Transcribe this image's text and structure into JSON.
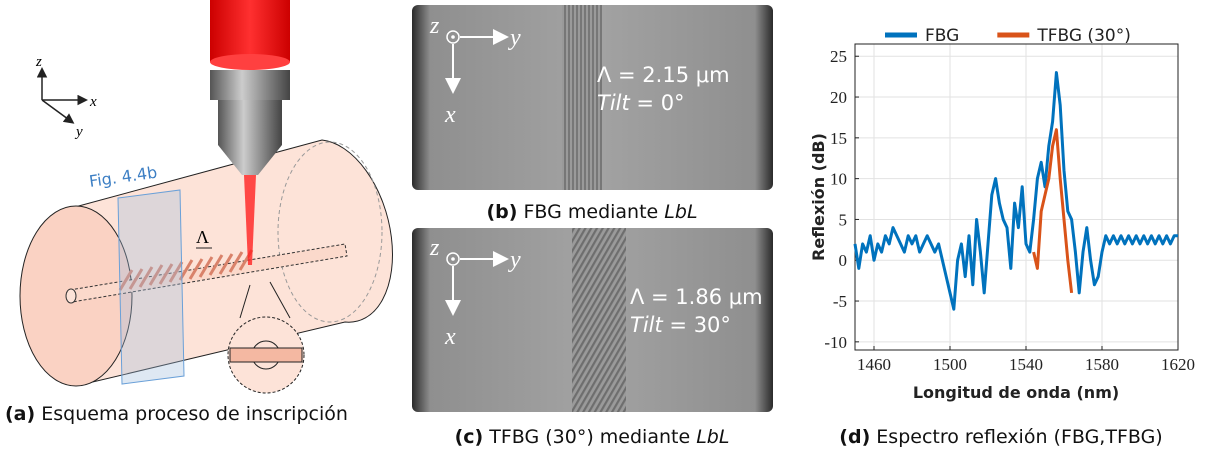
{
  "panel_a": {
    "label": "(a)",
    "caption": "Esquema proceso de inscripción",
    "axis_z": "z",
    "axis_x": "x",
    "axis_y": "y",
    "fig_ref": "Fig. 4.4b",
    "period_symbol": "Λ"
  },
  "panel_b": {
    "label": "(b)",
    "caption": "FBG mediante",
    "caption_italic": "LbL",
    "axis_z": "z",
    "axis_y": "y",
    "axis_x": "x",
    "period": "Λ = 2.15 μm",
    "tilt_word": "Tilt",
    "tilt_value": "= 0°"
  },
  "panel_c": {
    "label": "(c)",
    "caption": "TFBG (30°) mediante",
    "caption_italic": "LbL",
    "axis_z": "z",
    "axis_y": "y",
    "axis_x": "x",
    "period": "Λ = 1.86 μm",
    "tilt_word": "Tilt",
    "tilt_value": "= 30°"
  },
  "chart_data": {
    "type": "line",
    "label": "(d)",
    "caption": "Espectro reflexión (FBG,TFBG)",
    "x_label": "Longitud de onda (nm)",
    "y_label": "Reflexión (dB)",
    "xlim": [
      1450,
      1620
    ],
    "ylim": [
      -11,
      26.5
    ],
    "xticks": [
      1460,
      1500,
      1540,
      1580,
      1620
    ],
    "yticks": [
      -10,
      -5,
      0,
      5,
      10,
      15,
      20,
      25
    ],
    "grid": true,
    "legend": "top",
    "x": [
      1450,
      1452,
      1454,
      1456,
      1458,
      1460,
      1462,
      1464,
      1466,
      1468,
      1470,
      1472,
      1474,
      1476,
      1478,
      1480,
      1482,
      1484,
      1486,
      1488,
      1490,
      1492,
      1494,
      1496,
      1498,
      1500,
      1502,
      1504,
      1506,
      1508,
      1510,
      1512,
      1514,
      1516,
      1518,
      1520,
      1522,
      1524,
      1526,
      1528,
      1530,
      1532,
      1534,
      1536,
      1538,
      1540,
      1542,
      1544,
      1546,
      1548,
      1550,
      1552,
      1554,
      1556,
      1558,
      1560,
      1562,
      1564,
      1566,
      1568,
      1570,
      1572,
      1574,
      1576,
      1578,
      1580,
      1582,
      1584,
      1586,
      1588,
      1590,
      1592,
      1594,
      1596,
      1598,
      1600,
      1602,
      1604,
      1606,
      1608,
      1610,
      1612,
      1614,
      1616,
      1618,
      1620
    ],
    "series": [
      {
        "name": "FBG",
        "color": "#0072bd",
        "values": [
          2,
          -1,
          2,
          1,
          3,
          0,
          2,
          1,
          3,
          2,
          4,
          3,
          2,
          1,
          3,
          2,
          3,
          1,
          2,
          3,
          2,
          1,
          2,
          0,
          -2,
          -4,
          -6,
          0,
          2,
          -2,
          3,
          -3,
          5,
          1,
          -4,
          2,
          8,
          10,
          7,
          5,
          4,
          -1,
          7,
          4,
          9,
          2,
          1,
          5,
          10,
          12,
          9,
          14,
          17,
          23,
          19,
          11,
          6,
          5,
          1,
          -4,
          1,
          4,
          0,
          -3,
          -2,
          1,
          3,
          2,
          3,
          2,
          3,
          2,
          3,
          2,
          3,
          2,
          3,
          2,
          3,
          2,
          3,
          2,
          3,
          2,
          3,
          3
        ]
      },
      {
        "name": "TFBG (30°)",
        "color": "#d95319",
        "values": [
          null,
          null,
          null,
          null,
          null,
          null,
          null,
          null,
          null,
          null,
          null,
          null,
          null,
          null,
          null,
          null,
          null,
          null,
          null,
          null,
          null,
          null,
          null,
          null,
          null,
          null,
          null,
          null,
          null,
          null,
          null,
          null,
          null,
          null,
          null,
          null,
          null,
          null,
          null,
          null,
          null,
          null,
          null,
          null,
          null,
          null,
          null,
          1,
          -1,
          6,
          8,
          10,
          14,
          16,
          10,
          5,
          0,
          -4,
          null,
          null,
          null,
          null,
          null,
          null,
          null,
          null,
          null,
          null,
          null,
          null,
          null,
          null,
          null,
          null,
          null,
          null,
          null,
          null,
          null,
          null,
          null,
          null,
          null,
          null,
          null,
          null
        ]
      }
    ]
  }
}
